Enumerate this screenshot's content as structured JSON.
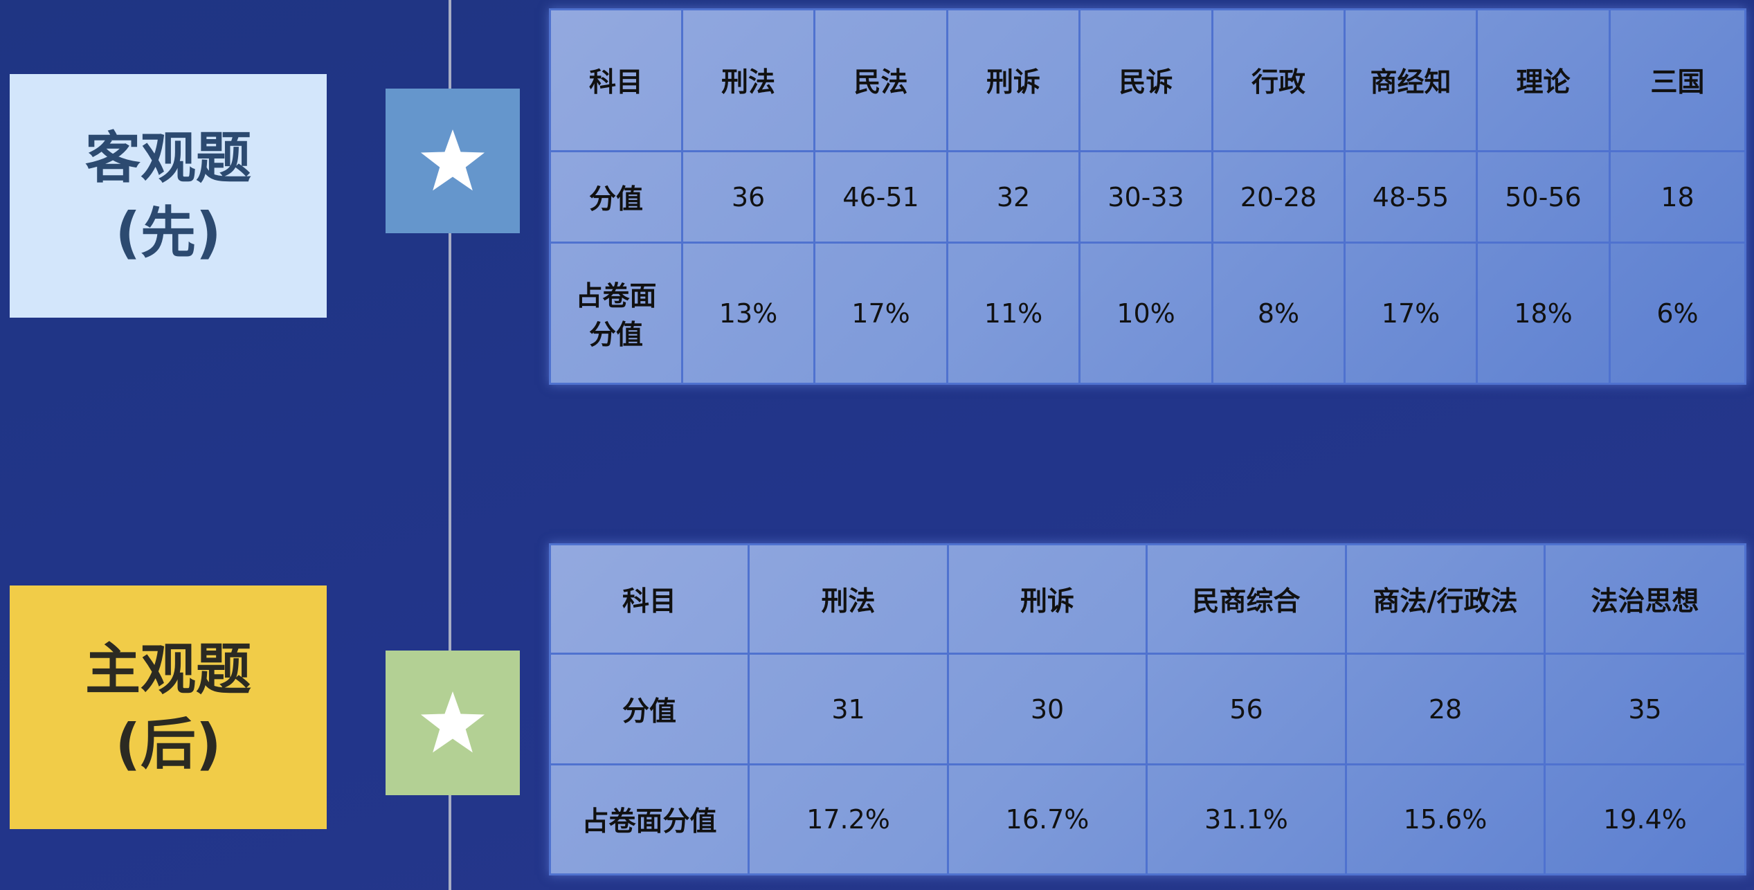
{
  "objective": {
    "label_line1": "客观题",
    "label_line2": "(先)",
    "accent_color": "#d3e6fb",
    "star_color": "#6596cc",
    "table": {
      "header": [
        "科目",
        "刑法",
        "民法",
        "刑诉",
        "民诉",
        "行政",
        "商经知",
        "理论",
        "三国"
      ],
      "rows": [
        [
          "分值",
          "36",
          "46-51",
          "32",
          "30-33",
          "20-28",
          "48-55",
          "50-56",
          "18"
        ],
        [
          "占卷面\n分值",
          "13%",
          "17%",
          "11%",
          "10%",
          "8%",
          "17%",
          "18%",
          "6%"
        ]
      ]
    }
  },
  "subjective": {
    "label_line1": "主观题",
    "label_line2": "(后)",
    "accent_color": "#f1cc48",
    "star_color": "#b3d094",
    "table": {
      "header": [
        "科目",
        "刑法",
        "刑诉",
        "民商综合",
        "商法/行政法",
        "法治思想"
      ],
      "rows": [
        [
          "分值",
          "31",
          "30",
          "56",
          "28",
          "35"
        ],
        [
          "占卷面分值",
          "17.2%",
          "16.7%",
          "31.1%",
          "15.6%",
          "19.4%"
        ]
      ]
    }
  },
  "icons": {
    "star": "star-icon"
  }
}
